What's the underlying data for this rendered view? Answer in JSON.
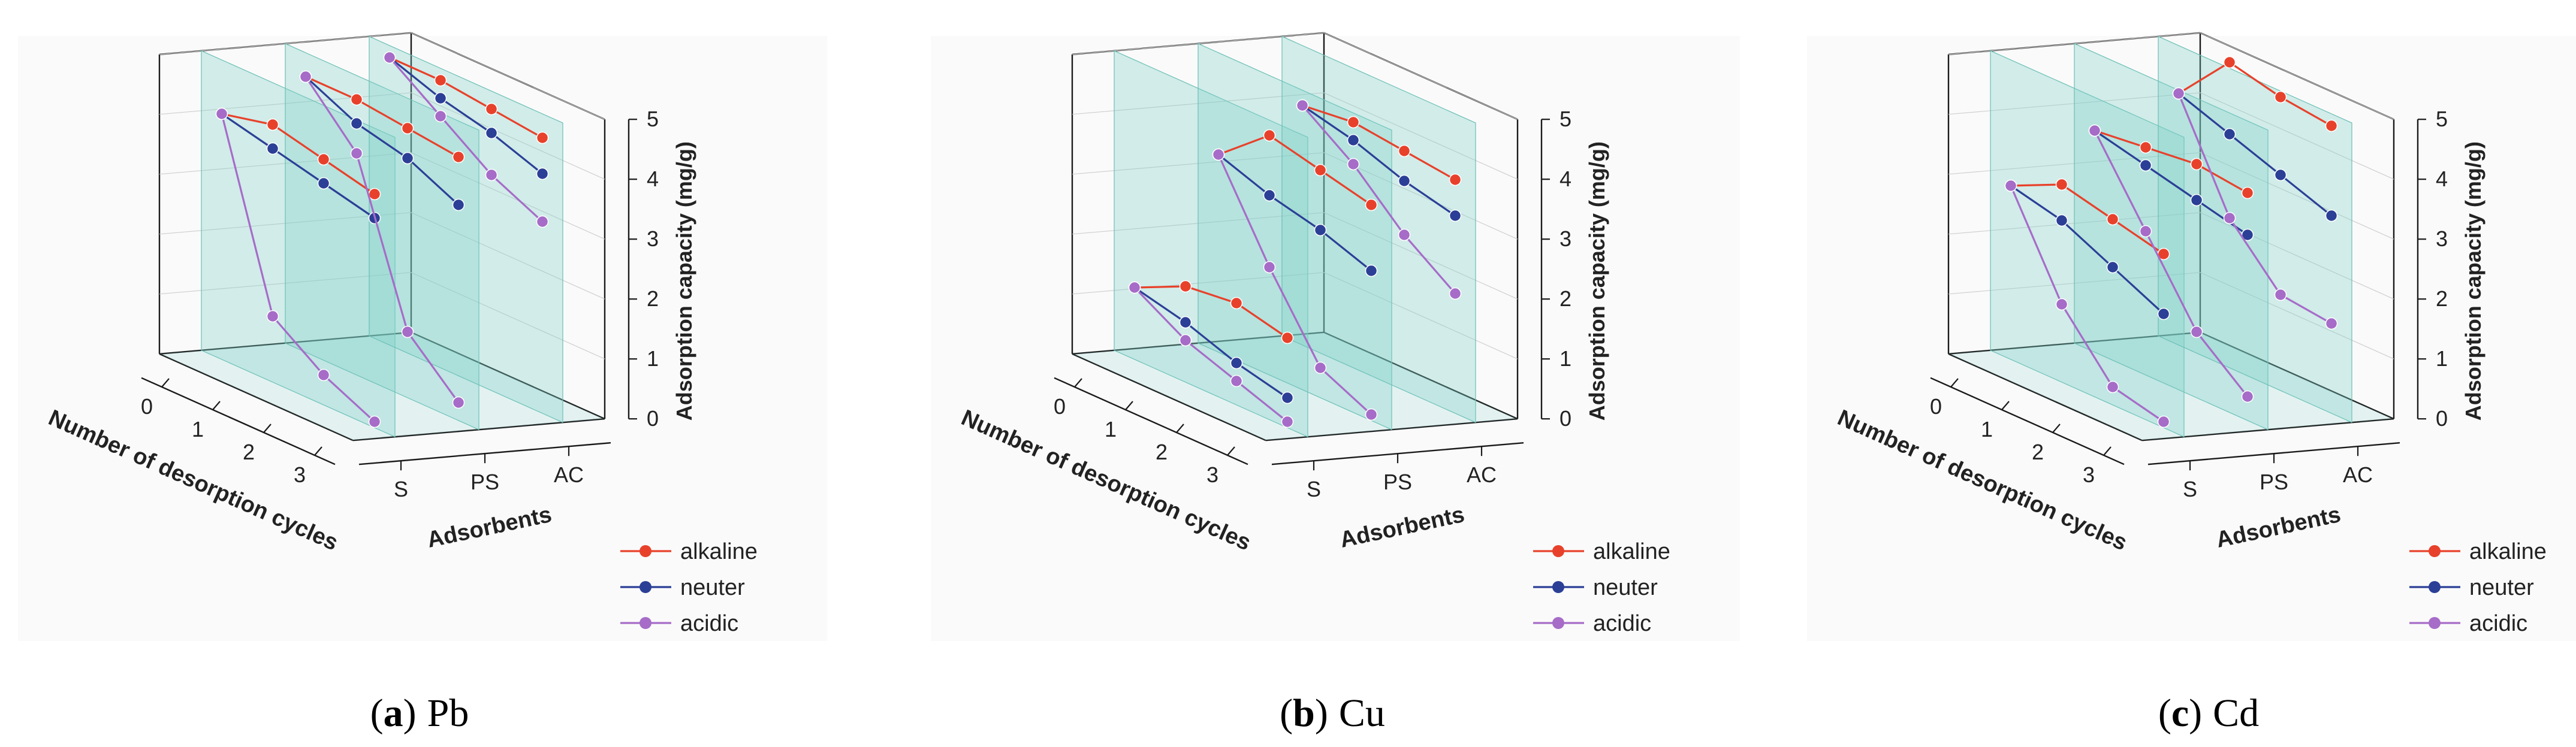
{
  "figure": {
    "legend": {
      "items": [
        {
          "key": "alkaline",
          "label": "alkaline",
          "color": "#e8412b"
        },
        {
          "key": "neuter",
          "label": "neuter",
          "color": "#2b3f96"
        },
        {
          "key": "acidic",
          "label": "acidic",
          "color": "#a66cc8"
        }
      ]
    },
    "colors": {
      "plane_fill": "#7ccfc6",
      "plane_stroke": "#6bbfb5",
      "axis": "#1a1a1a",
      "panel_background": "#fafafa"
    }
  },
  "chart_data": [
    {
      "type": "line",
      "subtype": "3d-line",
      "caption": {
        "letter": "a",
        "metal": "Pb",
        "open": "(",
        "close": ")"
      },
      "x_label": "Number of desorption cycles",
      "y_label": "Adsorbents",
      "z_label": "Adsorption capacity (mg/g)",
      "x_ticks": [
        "0",
        "1",
        "2",
        "3"
      ],
      "y_ticks": [
        "S",
        "PS",
        "AC"
      ],
      "z_ticks": [
        "0",
        "1",
        "2",
        "3",
        "4",
        "5"
      ],
      "zlim": [
        0,
        5
      ],
      "series": [
        {
          "adsorbent": "S",
          "condition": "alkaline",
          "values": [
            4.1,
            4.3,
            4.1,
            3.9
          ]
        },
        {
          "adsorbent": "S",
          "condition": "neuter",
          "values": [
            4.1,
            3.9,
            3.7,
            3.5
          ]
        },
        {
          "adsorbent": "S",
          "condition": "acidic",
          "values": [
            4.1,
            1.1,
            0.5,
            0.1
          ]
        },
        {
          "adsorbent": "PS",
          "condition": "alkaline",
          "values": [
            4.6,
            4.6,
            4.5,
            4.4
          ]
        },
        {
          "adsorbent": "PS",
          "condition": "neuter",
          "values": [
            4.6,
            4.2,
            4.0,
            3.6
          ]
        },
        {
          "adsorbent": "PS",
          "condition": "acidic",
          "values": [
            4.6,
            3.7,
            1.1,
            0.3
          ]
        },
        {
          "adsorbent": "AC",
          "condition": "alkaline",
          "values": [
            4.8,
            4.8,
            4.7,
            4.6
          ]
        },
        {
          "adsorbent": "AC",
          "condition": "neuter",
          "values": [
            4.8,
            4.5,
            4.3,
            4.0
          ]
        },
        {
          "adsorbent": "AC",
          "condition": "acidic",
          "values": [
            4.8,
            4.2,
            3.6,
            3.2
          ]
        }
      ]
    },
    {
      "type": "line",
      "subtype": "3d-line",
      "caption": {
        "letter": "b",
        "metal": "Cu",
        "open": "(",
        "close": ")"
      },
      "x_label": "Number of desorption cycles",
      "y_label": "Adsorbents",
      "z_label": "Adsorption capacity (mg/g)",
      "x_ticks": [
        "0",
        "1",
        "2",
        "3"
      ],
      "y_ticks": [
        "S",
        "PS",
        "AC"
      ],
      "z_ticks": [
        "0",
        "1",
        "2",
        "3",
        "4",
        "5"
      ],
      "zlim": [
        0,
        5
      ],
      "series": [
        {
          "adsorbent": "S",
          "condition": "alkaline",
          "values": [
            1.2,
            1.6,
            1.7,
            1.5
          ]
        },
        {
          "adsorbent": "S",
          "condition": "neuter",
          "values": [
            1.2,
            1.0,
            0.7,
            0.5
          ]
        },
        {
          "adsorbent": "S",
          "condition": "acidic",
          "values": [
            1.2,
            0.7,
            0.4,
            0.1
          ]
        },
        {
          "adsorbent": "PS",
          "condition": "alkaline",
          "values": [
            3.3,
            4.0,
            3.8,
            3.6
          ]
        },
        {
          "adsorbent": "PS",
          "condition": "neuter",
          "values": [
            3.3,
            3.0,
            2.8,
            2.5
          ]
        },
        {
          "adsorbent": "PS",
          "condition": "acidic",
          "values": [
            3.3,
            1.8,
            0.5,
            0.1
          ]
        },
        {
          "adsorbent": "AC",
          "condition": "alkaline",
          "values": [
            4.0,
            4.1,
            4.0,
            3.9
          ]
        },
        {
          "adsorbent": "AC",
          "condition": "neuter",
          "values": [
            4.0,
            3.8,
            3.5,
            3.3
          ]
        },
        {
          "adsorbent": "AC",
          "condition": "acidic",
          "values": [
            4.0,
            3.4,
            2.6,
            2.0
          ]
        }
      ]
    },
    {
      "type": "line",
      "subtype": "3d-line",
      "caption": {
        "letter": "c",
        "metal": "Cd",
        "open": "(",
        "close": ")"
      },
      "x_label": "Number of desorption cycles",
      "y_label": "Adsorbents",
      "z_label": "Adsorption capacity (mg/g)",
      "x_ticks": [
        "0",
        "1",
        "2",
        "3"
      ],
      "y_ticks": [
        "S",
        "PS",
        "AC"
      ],
      "z_ticks": [
        "0",
        "1",
        "2",
        "3",
        "4",
        "5"
      ],
      "zlim": [
        0,
        5
      ],
      "series": [
        {
          "adsorbent": "S",
          "condition": "alkaline",
          "values": [
            2.9,
            3.3,
            3.1,
            2.9
          ]
        },
        {
          "adsorbent": "S",
          "condition": "neuter",
          "values": [
            2.9,
            2.7,
            2.3,
            1.9
          ]
        },
        {
          "adsorbent": "S",
          "condition": "acidic",
          "values": [
            2.9,
            1.3,
            0.3,
            0.1
          ]
        },
        {
          "adsorbent": "PS",
          "condition": "alkaline",
          "values": [
            3.7,
            3.8,
            3.9,
            3.8
          ]
        },
        {
          "adsorbent": "PS",
          "condition": "neuter",
          "values": [
            3.7,
            3.5,
            3.3,
            3.1
          ]
        },
        {
          "adsorbent": "PS",
          "condition": "acidic",
          "values": [
            3.7,
            2.4,
            1.1,
            0.4
          ]
        },
        {
          "adsorbent": "AC",
          "condition": "alkaline",
          "values": [
            4.2,
            5.1,
            4.9,
            4.8
          ]
        },
        {
          "adsorbent": "AC",
          "condition": "neuter",
          "values": [
            4.2,
            3.9,
            3.6,
            3.3
          ]
        },
        {
          "adsorbent": "AC",
          "condition": "acidic",
          "values": [
            4.2,
            2.5,
            1.6,
            1.5
          ]
        }
      ]
    }
  ]
}
